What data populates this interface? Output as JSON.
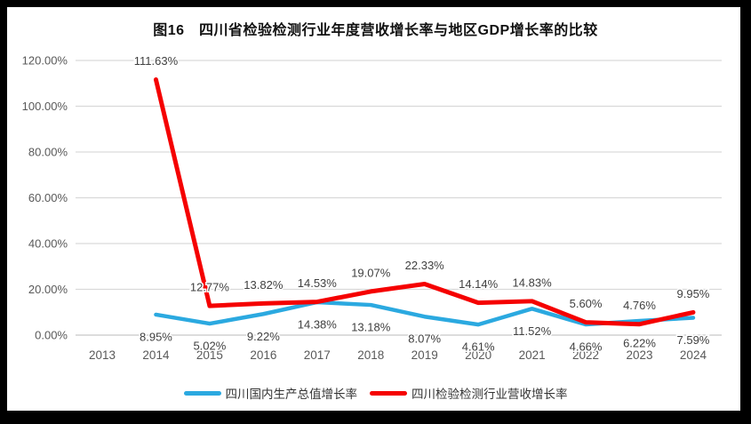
{
  "figure": {
    "title": "图16　四川省检验检测行业年度营收增长率与地区GDP增长率的比较"
  },
  "chart_data": {
    "type": "line",
    "title": "图16　四川省检验检测行业年度营收增长率与地区GDP增长率的比较",
    "categories": [
      "2013",
      "2014",
      "2015",
      "2016",
      "2017",
      "2018",
      "2019",
      "2020",
      "2021",
      "2022",
      "2023",
      "2024"
    ],
    "series": [
      {
        "name": "四川国内生产总值增长率",
        "color": "#2BA9E0",
        "label_position": "below",
        "values": [
          null,
          8.95,
          5.02,
          9.22,
          14.38,
          13.18,
          8.07,
          4.61,
          11.52,
          4.66,
          6.22,
          7.59
        ],
        "labels": [
          null,
          "8.95%",
          "5.02%",
          "9.22%",
          "14.38%",
          "13.18%",
          "8.07%",
          "4.61%",
          "11.52%",
          "4.66%",
          "6.22%",
          "7.59%"
        ]
      },
      {
        "name": "四川检验检测行业营收增长率",
        "color": "#F50000",
        "label_position": "above",
        "values": [
          null,
          111.63,
          12.77,
          13.82,
          14.53,
          19.07,
          22.33,
          14.14,
          14.83,
          5.6,
          4.76,
          9.95
        ],
        "labels": [
          null,
          "111.63%",
          "12.77%",
          "13.82%",
          "14.53%",
          "19.07%",
          "22.33%",
          "14.14%",
          "14.83%",
          "5.60%",
          "4.76%",
          "9.95%"
        ]
      }
    ],
    "y_axis": {
      "min": 0,
      "max": 120,
      "step": 20,
      "ticks": [
        "0.00%",
        "20.00%",
        "40.00%",
        "60.00%",
        "80.00%",
        "100.00%",
        "120.00%"
      ]
    },
    "x_axis_label": "",
    "y_axis_label": "",
    "grid": true,
    "legend_position": "bottom"
  },
  "colors": {
    "gdp_line": "#2BA9E0",
    "industry_line": "#F50000",
    "gridline": "#D9D9D9",
    "axis_line": "#C6C6C6",
    "axis_text": "#595959",
    "data_label_text": "#404040",
    "frame": "#000000",
    "background": "#FFFFFF"
  }
}
